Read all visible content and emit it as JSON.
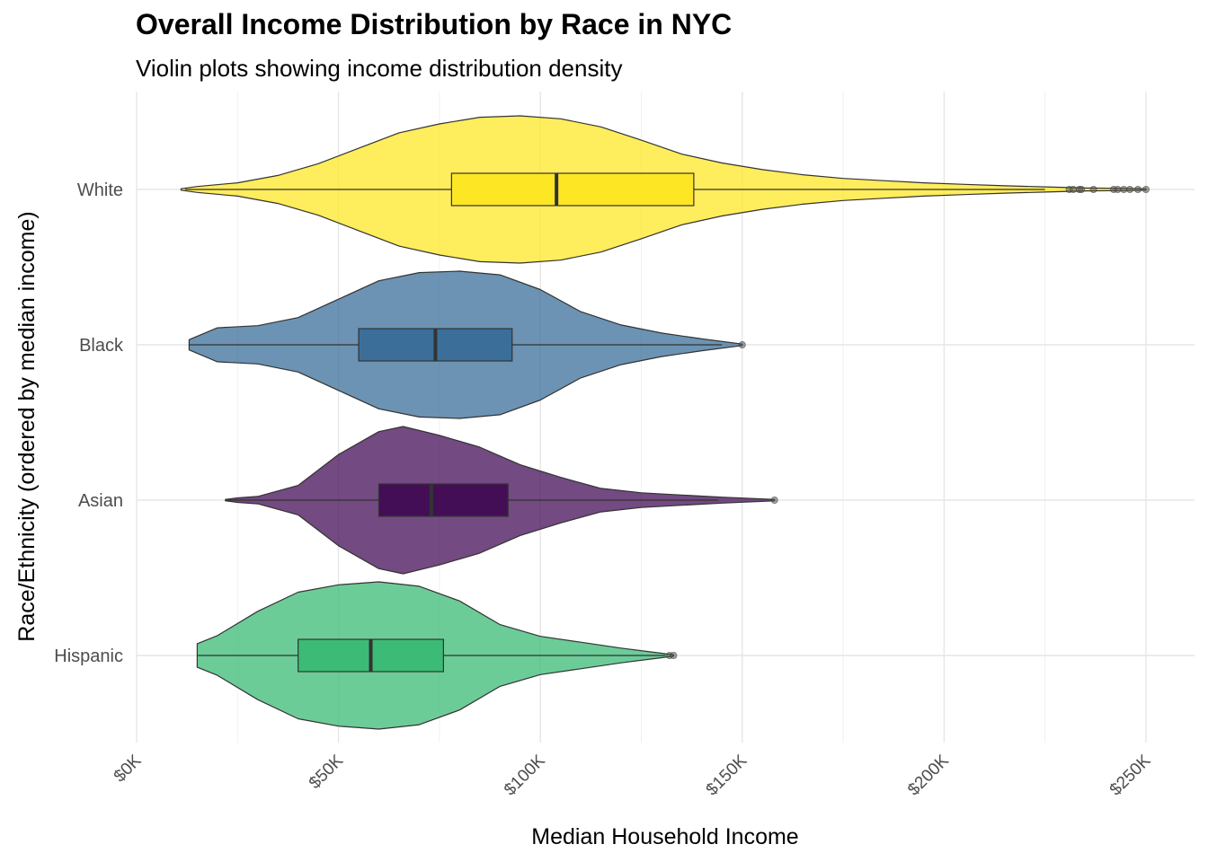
{
  "chart_data": {
    "type": "violin",
    "title": "Overall Income Distribution by Race in NYC",
    "subtitle": "Violin plots showing income distribution density",
    "xlabel": "Median Household Income",
    "ylabel": "Race/Ethnicity (ordered by median income)",
    "xlim": [
      0,
      260000
    ],
    "x_ticks": [
      {
        "value": 0,
        "label": "$0K"
      },
      {
        "value": 50000,
        "label": "$50K"
      },
      {
        "value": 100000,
        "label": "$100K"
      },
      {
        "value": 150000,
        "label": "$150K"
      },
      {
        "value": 200000,
        "label": "$200K"
      },
      {
        "value": 250000,
        "label": "$250K"
      }
    ],
    "grid": true,
    "categories": [
      "White",
      "Black",
      "Asian",
      "Hispanic"
    ],
    "series": [
      {
        "name": "White",
        "color": "#FDE725",
        "box": {
          "q1": 78000,
          "median": 104000,
          "q3": 138000,
          "whisker_low": 12000,
          "whisker_high": 225000
        },
        "outliers": [
          231000,
          232000,
          233500,
          234000,
          237000,
          242000,
          243000,
          244500,
          246000,
          248000,
          250000
        ],
        "density_min": 11000,
        "density_max": 250000,
        "density": [
          [
            11000,
            0.01
          ],
          [
            15000,
            0.04
          ],
          [
            25000,
            0.09
          ],
          [
            35000,
            0.19
          ],
          [
            45000,
            0.35
          ],
          [
            55000,
            0.56
          ],
          [
            65000,
            0.77
          ],
          [
            75000,
            0.89
          ],
          [
            85000,
            0.98
          ],
          [
            95000,
            1.0
          ],
          [
            105000,
            0.96
          ],
          [
            115000,
            0.85
          ],
          [
            125000,
            0.67
          ],
          [
            135000,
            0.48
          ],
          [
            145000,
            0.36
          ],
          [
            155000,
            0.27
          ],
          [
            165000,
            0.2
          ],
          [
            175000,
            0.15
          ],
          [
            185000,
            0.12
          ],
          [
            195000,
            0.09
          ],
          [
            205000,
            0.07
          ],
          [
            215000,
            0.05
          ],
          [
            225000,
            0.035
          ],
          [
            235000,
            0.02
          ],
          [
            245000,
            0.015
          ],
          [
            250000,
            0.01
          ]
        ]
      },
      {
        "name": "Black",
        "color": "#3B6F9A",
        "box": {
          "q1": 55000,
          "median": 74000,
          "q3": 93000,
          "whisker_low": 13000,
          "whisker_high": 145000
        },
        "outliers": [
          150000
        ],
        "density_min": 13000,
        "density_max": 150000,
        "density": [
          [
            13000,
            0.07
          ],
          [
            20000,
            0.23
          ],
          [
            30000,
            0.26
          ],
          [
            40000,
            0.37
          ],
          [
            50000,
            0.62
          ],
          [
            60000,
            0.87
          ],
          [
            70000,
            0.98
          ],
          [
            80000,
            1.0
          ],
          [
            90000,
            0.95
          ],
          [
            100000,
            0.75
          ],
          [
            110000,
            0.45
          ],
          [
            120000,
            0.27
          ],
          [
            130000,
            0.16
          ],
          [
            140000,
            0.08
          ],
          [
            150000,
            0.01
          ]
        ]
      },
      {
        "name": "Asian",
        "color": "#440E57",
        "box": {
          "q1": 60000,
          "median": 73000,
          "q3": 92000,
          "whisker_low": 22000,
          "whisker_high": 144000
        },
        "outliers": [
          158000
        ],
        "density_min": 22000,
        "density_max": 158000,
        "density": [
          [
            22000,
            0.01
          ],
          [
            25000,
            0.03
          ],
          [
            30000,
            0.05
          ],
          [
            40000,
            0.2
          ],
          [
            50000,
            0.62
          ],
          [
            60000,
            0.93
          ],
          [
            66000,
            1.0
          ],
          [
            75000,
            0.88
          ],
          [
            85000,
            0.72
          ],
          [
            95000,
            0.48
          ],
          [
            105000,
            0.31
          ],
          [
            115000,
            0.16
          ],
          [
            125000,
            0.1
          ],
          [
            135000,
            0.07
          ],
          [
            145000,
            0.04
          ],
          [
            158000,
            0.01
          ]
        ]
      },
      {
        "name": "Hispanic",
        "color": "#3BBB75",
        "box": {
          "q1": 40000,
          "median": 58000,
          "q3": 76000,
          "whisker_low": 15000,
          "whisker_high": 131000
        },
        "outliers": [
          132000,
          133000
        ],
        "density_min": 15000,
        "density_max": 133000,
        "density": [
          [
            15000,
            0.16
          ],
          [
            20000,
            0.27
          ],
          [
            30000,
            0.6
          ],
          [
            40000,
            0.86
          ],
          [
            50000,
            0.96
          ],
          [
            60000,
            1.0
          ],
          [
            70000,
            0.94
          ],
          [
            80000,
            0.74
          ],
          [
            90000,
            0.42
          ],
          [
            100000,
            0.26
          ],
          [
            110000,
            0.18
          ],
          [
            120000,
            0.1
          ],
          [
            130000,
            0.03
          ],
          [
            133000,
            0.01
          ]
        ]
      }
    ]
  }
}
